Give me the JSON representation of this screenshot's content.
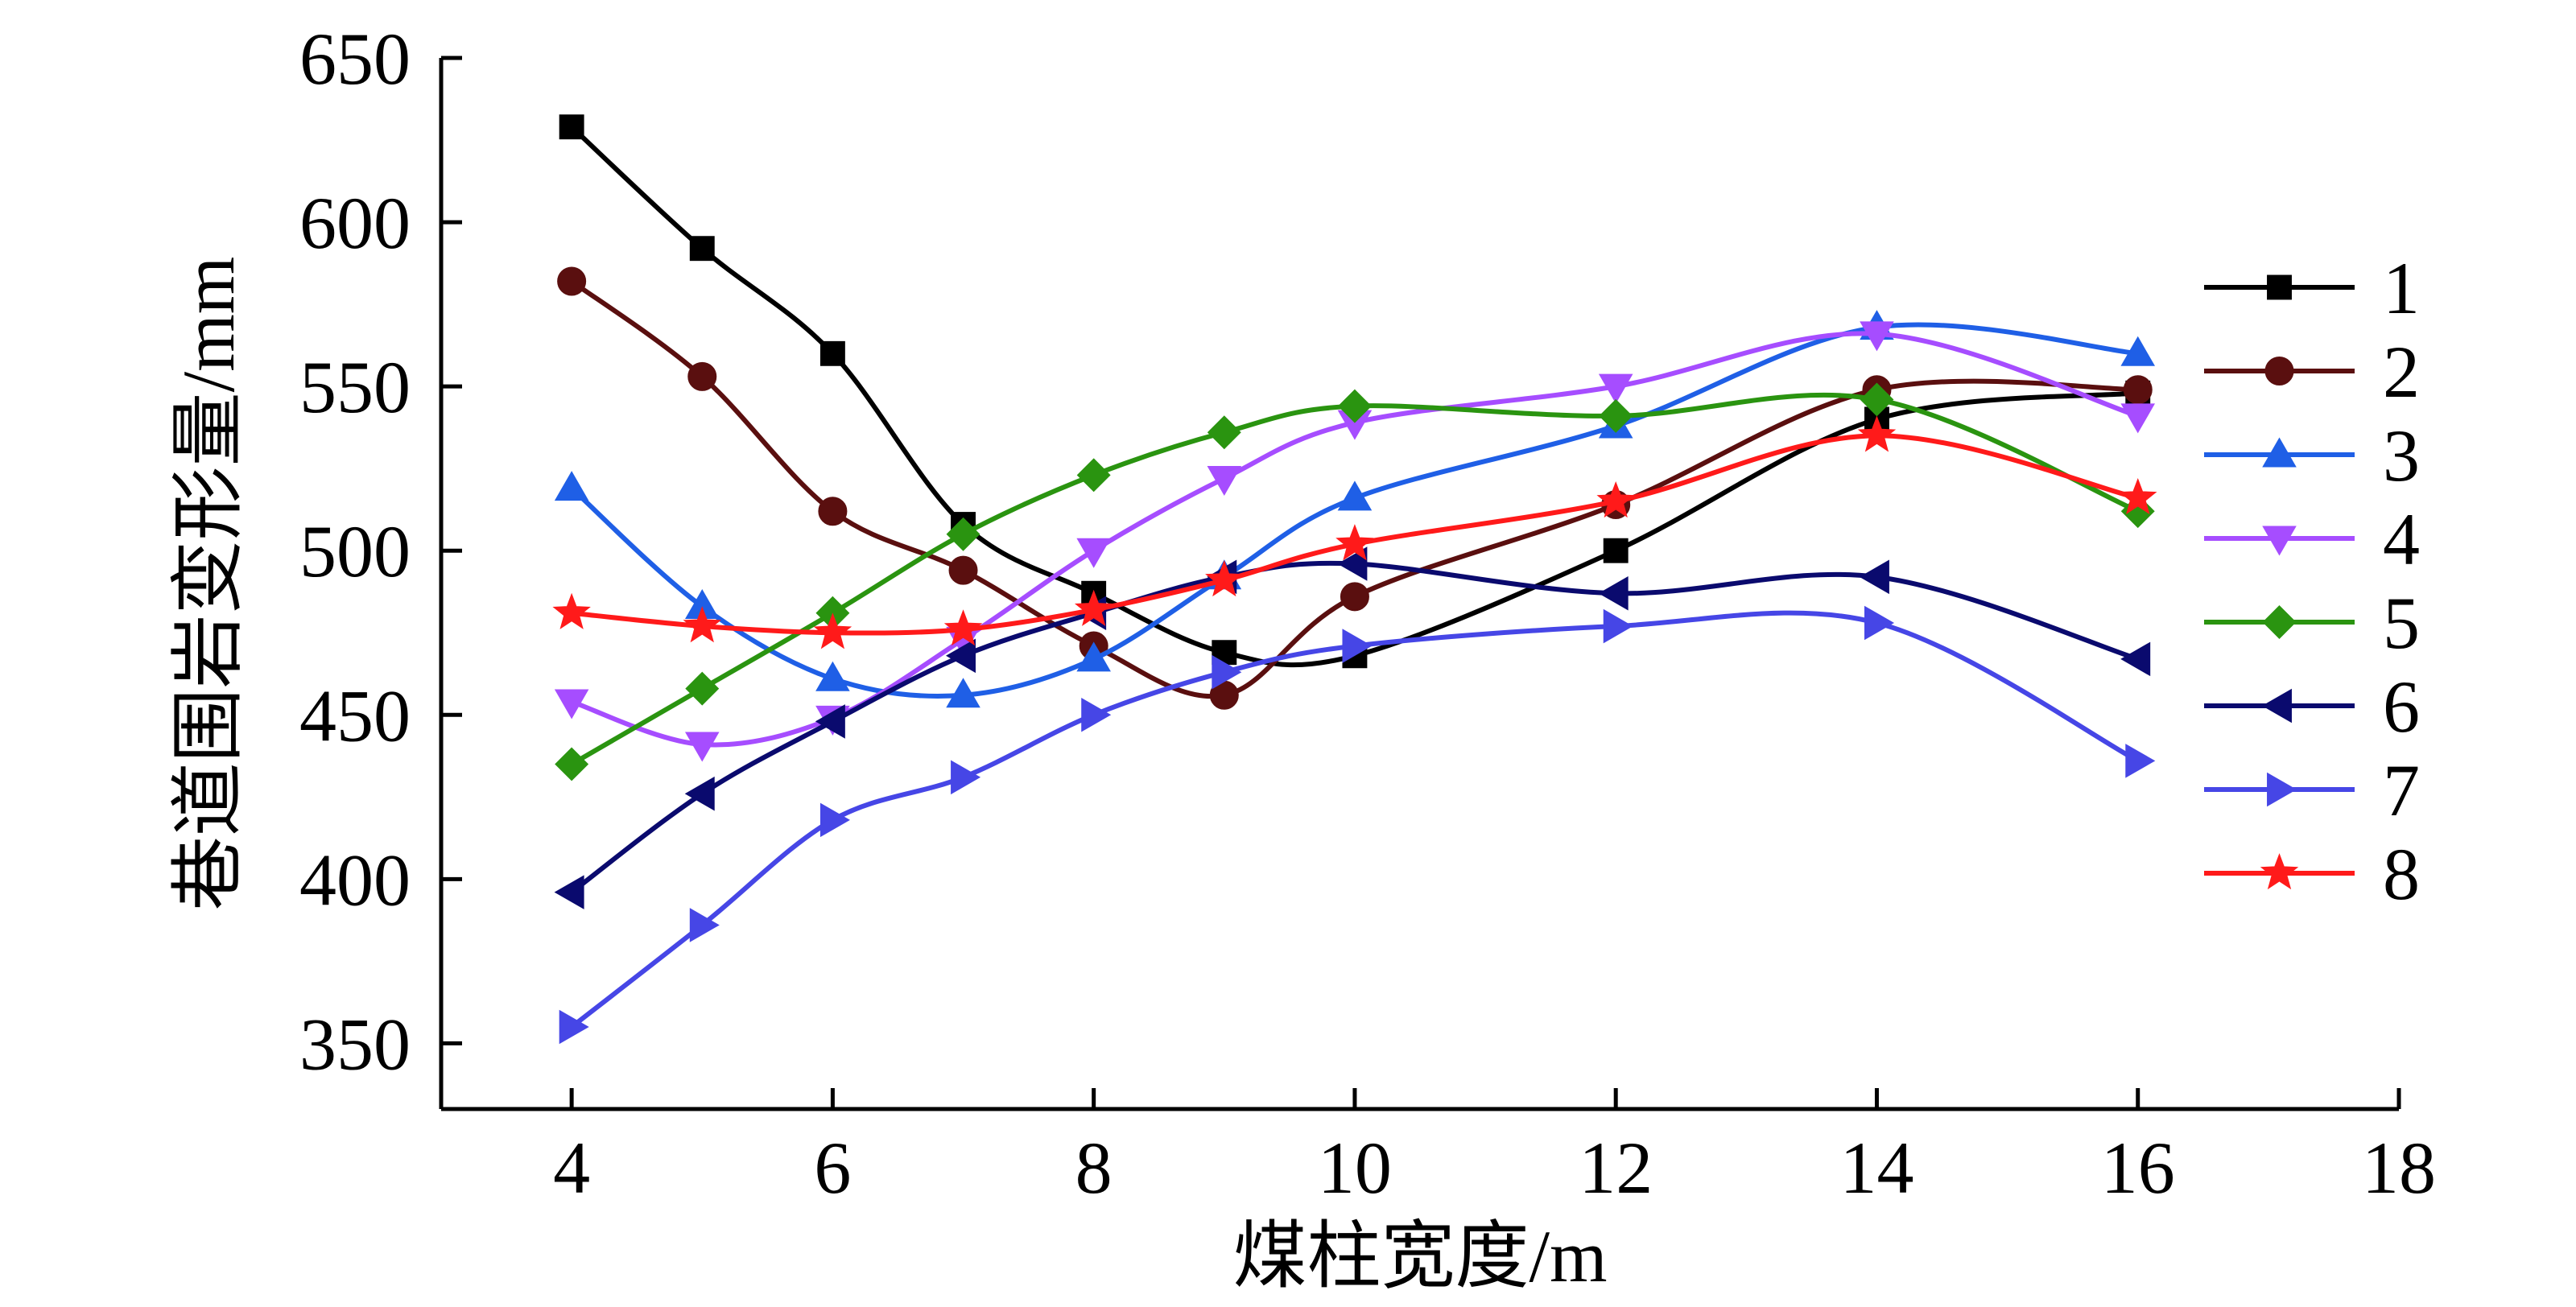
{
  "chart_data": {
    "type": "line",
    "xlabel": "煤柱宽度/m",
    "ylabel": "巷道围岩变形量/mm",
    "xlim": [
      3,
      18
    ],
    "ylim": [
      330,
      650
    ],
    "xticks": [
      4,
      6,
      8,
      10,
      12,
      14,
      16,
      18
    ],
    "yticks": [
      350,
      400,
      450,
      500,
      550,
      600,
      650
    ],
    "x": [
      4,
      5,
      6,
      7,
      8,
      9,
      10,
      12,
      14,
      16
    ],
    "grid": false,
    "legend_position": "right",
    "series": [
      {
        "name": "1",
        "color": "#000000",
        "marker": "square",
        "values": [
          629,
          592,
          560,
          508,
          487,
          469,
          468,
          500,
          540,
          548
        ]
      },
      {
        "name": "2",
        "color": "#5a0f0f",
        "marker": "circle",
        "values": [
          582,
          553,
          512,
          494,
          471,
          456,
          486,
          514,
          549,
          549
        ]
      },
      {
        "name": "3",
        "color": "#1f5fe6",
        "marker": "triangle-up",
        "values": [
          519,
          483,
          461,
          456,
          467,
          492,
          516,
          538,
          568,
          560
        ]
      },
      {
        "name": "4",
        "color": "#a64dff",
        "marker": "triangle-down",
        "values": [
          454,
          441,
          449,
          473,
          500,
          522,
          539,
          550,
          566,
          541
        ]
      },
      {
        "name": "5",
        "color": "#2a9410",
        "marker": "diamond",
        "values": [
          435,
          458,
          481,
          505,
          523,
          536,
          544,
          541,
          546,
          512
        ]
      },
      {
        "name": "6",
        "color": "#0a0a6e",
        "marker": "triangle-left",
        "values": [
          396,
          426,
          448,
          468,
          481,
          492,
          496,
          487,
          492,
          467
        ]
      },
      {
        "name": "7",
        "color": "#4646e6",
        "marker": "triangle-right",
        "values": [
          355,
          386,
          418,
          431,
          450,
          463,
          471,
          477,
          478,
          436
        ]
      },
      {
        "name": "8",
        "color": "#ff1a1a",
        "marker": "star",
        "values": [
          481,
          477,
          475,
          476,
          482,
          491,
          502,
          515,
          535,
          516
        ]
      }
    ]
  }
}
